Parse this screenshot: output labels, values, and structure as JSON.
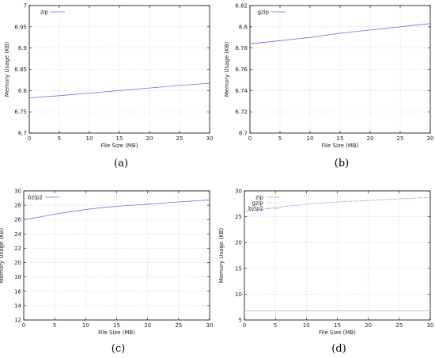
{
  "chart_data": [
    {
      "type": "line",
      "caption": "(a)",
      "xlabel": "File Size (MB)",
      "ylabel": "Memory Usage (KB)",
      "xlim": [
        0,
        30
      ],
      "ylim": [
        6.7,
        7.0
      ],
      "xticks": [
        0,
        5,
        10,
        15,
        20,
        25,
        30
      ],
      "yticks": [
        6.7,
        6.75,
        6.8,
        6.85,
        6.9,
        6.95,
        7.0
      ],
      "ytick_labels": [
        "6.7",
        "6.75",
        "6.8",
        "6.85",
        "6.9",
        "6.95",
        "7"
      ],
      "grid": true,
      "legend": "top-left",
      "series": [
        {
          "name": "zip",
          "color": "#7b68ee",
          "style": "solid",
          "x": [
            0,
            5,
            10,
            15,
            20,
            25,
            30
          ],
          "y": [
            6.783,
            6.788,
            6.794,
            6.8,
            6.806,
            6.812,
            6.817
          ]
        }
      ]
    },
    {
      "type": "line",
      "caption": "(b)",
      "xlabel": "File Size (MB)",
      "ylabel": "Memory Usage (KB)",
      "xlim": [
        0,
        30
      ],
      "ylim": [
        6.7,
        6.82
      ],
      "xticks": [
        0,
        5,
        10,
        15,
        20,
        25,
        30
      ],
      "yticks": [
        6.7,
        6.72,
        6.74,
        6.76,
        6.78,
        6.8,
        6.82
      ],
      "ytick_labels": [
        "6.7",
        "6.72",
        "6.74",
        "6.76",
        "6.78",
        "6.8",
        "6.82"
      ],
      "grid": true,
      "legend": "top-left",
      "series": [
        {
          "name": "gzip",
          "color": "#7b68ee",
          "style": "solid",
          "x": [
            0,
            5,
            10,
            15,
            20,
            25,
            30
          ],
          "y": [
            6.784,
            6.787,
            6.79,
            6.794,
            6.797,
            6.8,
            6.803
          ]
        }
      ]
    },
    {
      "type": "line",
      "caption": "(c)",
      "xlabel": "File Size (MB)",
      "ylabel": "Memory Usage (KB)",
      "xlim": [
        0,
        30
      ],
      "ylim": [
        12,
        30
      ],
      "xticks": [
        0,
        5,
        10,
        15,
        20,
        25,
        30
      ],
      "yticks": [
        12,
        14,
        16,
        18,
        20,
        22,
        24,
        26,
        28,
        30
      ],
      "ytick_labels": [
        "12",
        "14",
        "16",
        "18",
        "20",
        "22",
        "24",
        "26",
        "28",
        "30"
      ],
      "grid": true,
      "legend": "top-left",
      "series": [
        {
          "name": "bzip2",
          "color": "#7b68ee",
          "style": "solid",
          "x": [
            0,
            2.5,
            5,
            7.5,
            10,
            12.5,
            15,
            17.5,
            20,
            22.5,
            25,
            27.5,
            30
          ],
          "y": [
            26.0,
            26.35,
            26.75,
            27.1,
            27.4,
            27.65,
            27.85,
            28.0,
            28.15,
            28.3,
            28.45,
            28.6,
            28.75
          ]
        }
      ]
    },
    {
      "type": "line",
      "caption": "(d)",
      "xlabel": "File Size (MB)",
      "ylabel": "Memory Usage (KB)",
      "xlim": [
        0,
        30
      ],
      "ylim": [
        5,
        30
      ],
      "xticks": [
        0,
        5,
        10,
        15,
        20,
        25,
        30
      ],
      "yticks": [
        5,
        10,
        15,
        20,
        25,
        30
      ],
      "ytick_labels": [
        "5",
        "10",
        "15",
        "20",
        "25",
        "30"
      ],
      "grid": true,
      "legend": "top-left",
      "series": [
        {
          "name": "zip",
          "color": "#e8a080",
          "style": "solid",
          "x": [
            0,
            30
          ],
          "y": [
            6.78,
            6.82
          ]
        },
        {
          "name": "gzip",
          "color": "#a0c0ff",
          "style": "dotted",
          "x": [
            0,
            30
          ],
          "y": [
            6.78,
            6.8
          ]
        },
        {
          "name": "bzip2",
          "color": "#7b68ee",
          "style": "dotted",
          "x": [
            0,
            2.5,
            5,
            7.5,
            10,
            12.5,
            15,
            17.5,
            20,
            22.5,
            25,
            27.5,
            30
          ],
          "y": [
            26.0,
            26.35,
            26.75,
            27.1,
            27.4,
            27.65,
            27.85,
            28.0,
            28.15,
            28.3,
            28.45,
            28.6,
            28.75
          ]
        }
      ]
    }
  ]
}
